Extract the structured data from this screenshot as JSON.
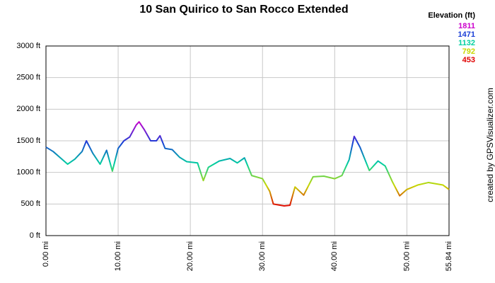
{
  "chart_data": {
    "type": "line",
    "title": "10 San Quirico to San Rocco Extended",
    "credit": "created by GPSVisualizer.com",
    "legend_title": "Elevation (ft)",
    "color_scale": [
      {
        "value": 1811,
        "color": "#cc00cc"
      },
      {
        "value": 1471,
        "color": "#1a3fd6"
      },
      {
        "value": 1132,
        "color": "#00d0a0"
      },
      {
        "value": 792,
        "color": "#c8d800"
      },
      {
        "value": 453,
        "color": "#e00000"
      }
    ],
    "x": [
      0,
      1,
      2,
      3,
      4,
      5,
      5.6,
      6.5,
      7.5,
      8.4,
      9.2,
      10,
      10.8,
      11.6,
      12.5,
      12.9,
      13.6,
      14.5,
      15.3,
      15.8,
      16.5,
      17.5,
      18.5,
      19.5,
      21,
      21.8,
      22.5,
      24,
      25.5,
      26.5,
      27.5,
      28.5,
      30,
      31,
      31.5,
      33,
      33.8,
      34.5,
      35.7,
      37,
      38.5,
      40,
      41,
      42,
      42.7,
      43.5,
      44.8,
      46,
      47,
      48,
      49,
      50,
      51.5,
      53,
      54,
      55,
      55.84
    ],
    "series": [
      {
        "name": "Elevation",
        "values": [
          1400,
          1330,
          1230,
          1130,
          1210,
          1330,
          1500,
          1300,
          1130,
          1350,
          1020,
          1380,
          1500,
          1560,
          1750,
          1800,
          1680,
          1500,
          1500,
          1580,
          1380,
          1360,
          1240,
          1170,
          1150,
          870,
          1080,
          1180,
          1220,
          1150,
          1230,
          950,
          900,
          700,
          500,
          470,
          480,
          770,
          640,
          930,
          940,
          900,
          950,
          1200,
          1570,
          1400,
          1030,
          1180,
          1100,
          850,
          630,
          730,
          800,
          840,
          820,
          800,
          730
        ]
      }
    ],
    "xlim": [
      0,
      55.84
    ],
    "xticks": [
      {
        "value": 0,
        "label": "0.00 mi"
      },
      {
        "value": 10,
        "label": "10.00 mi"
      },
      {
        "value": 20,
        "label": "20.00 mi"
      },
      {
        "value": 30,
        "label": "30.00 mi"
      },
      {
        "value": 40,
        "label": "40.00 mi"
      },
      {
        "value": 50,
        "label": "50.00 mi"
      },
      {
        "value": 55.84,
        "label": "55.84 mi"
      }
    ],
    "ylim": [
      0,
      3000
    ],
    "yticks": [
      {
        "value": 0,
        "label": "0 ft"
      },
      {
        "value": 500,
        "label": "500 ft"
      },
      {
        "value": 1000,
        "label": "1000 ft"
      },
      {
        "value": 1500,
        "label": "1500 ft"
      },
      {
        "value": 2000,
        "label": "2000 ft"
      },
      {
        "value": 2500,
        "label": "2500 ft"
      },
      {
        "value": 3000,
        "label": "3000 ft"
      }
    ],
    "grid": true
  }
}
